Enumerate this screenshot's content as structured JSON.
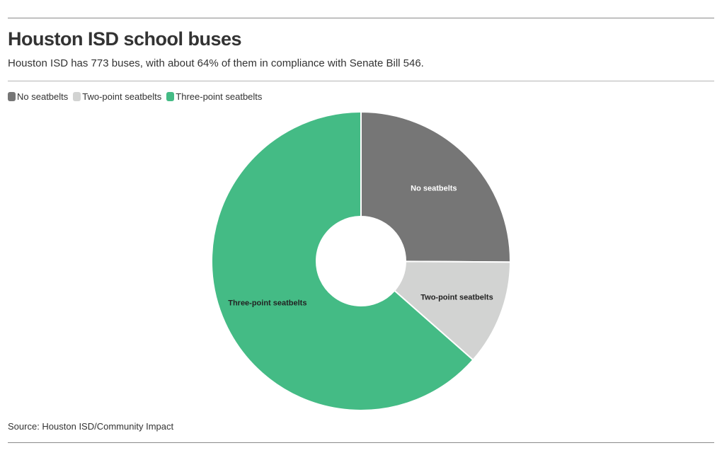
{
  "title": "Houston ISD school buses",
  "subtitle": "Houston ISD has 773 buses, with about 64% of them in compliance with Senate Bill 546.",
  "source": "Source: Houston ISD/Community Impact",
  "chart_data": {
    "type": "pie",
    "donut": true,
    "legend_position": "top-left",
    "categories": [
      "No seatbelts",
      "Two-point seatbelts",
      "Three-point seatbelts"
    ],
    "values": [
      25.1,
      11.4,
      63.5
    ],
    "colors": [
      "#767676",
      "#d2d3d2",
      "#44bb85"
    ],
    "label_colors": [
      "#ffffff",
      "#222222",
      "#222222"
    ]
  }
}
